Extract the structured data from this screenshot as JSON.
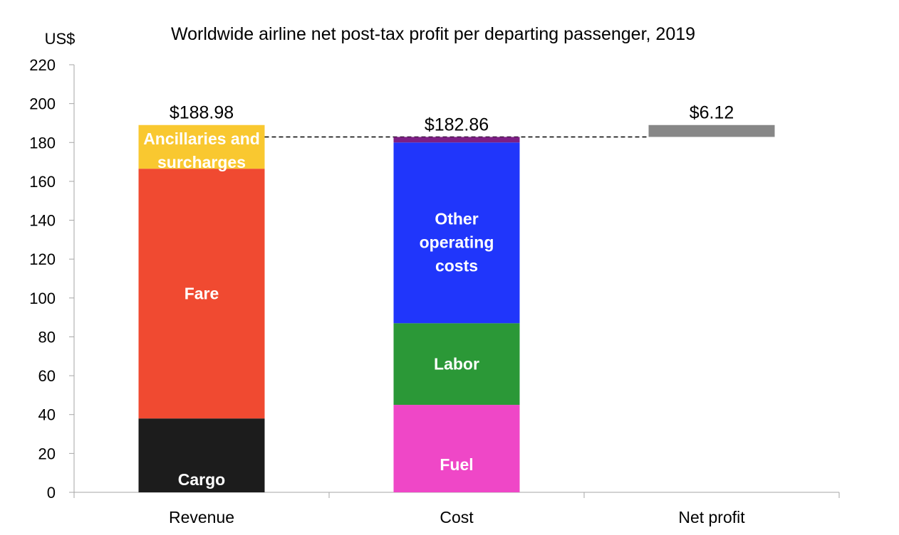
{
  "chart_data": {
    "type": "bar",
    "title": "Worldwide airline net post-tax profit per departing passenger, 2019",
    "ylabel": "US$",
    "ylim": [
      0,
      220
    ],
    "yticks": [
      0,
      20,
      40,
      60,
      80,
      100,
      120,
      140,
      160,
      180,
      200,
      220
    ],
    "categories": [
      "Revenue",
      "Cost",
      "Net profit"
    ],
    "stacks": [
      {
        "category": "Revenue",
        "total_label": "$188.98",
        "segments": [
          {
            "name": "Cargo",
            "label": "Cargo",
            "value": 38,
            "color": "#1c1c1c"
          },
          {
            "name": "Fare",
            "label": "Fare",
            "value": 128.5,
            "color": "#f04a31"
          },
          {
            "name": "Ancillaries and surcharges",
            "label": "Ancillaries and surcharges",
            "value": 22.48,
            "color": "#f9c830"
          }
        ]
      },
      {
        "category": "Cost",
        "total_label": "$182.86",
        "segments": [
          {
            "name": "Fuel",
            "label": "Fuel",
            "value": 45,
            "color": "#ef47c7"
          },
          {
            "name": "Labor",
            "label": "Labor",
            "value": 42,
            "color": "#2b9837"
          },
          {
            "name": "Other operating costs",
            "label": "Other operating costs",
            "value": 93,
            "color": "#2036fb"
          },
          {
            "name": "",
            "label": "",
            "value": 2.86,
            "color": "#7d1f84"
          }
        ]
      },
      {
        "category": "Net profit",
        "total_label": "$6.12",
        "floating_from": 182.86,
        "segments": [
          {
            "name": "Net profit",
            "label": "",
            "value": 6.12,
            "color": "#878787"
          }
        ]
      }
    ],
    "connector_value": 182.86,
    "grid": false
  }
}
